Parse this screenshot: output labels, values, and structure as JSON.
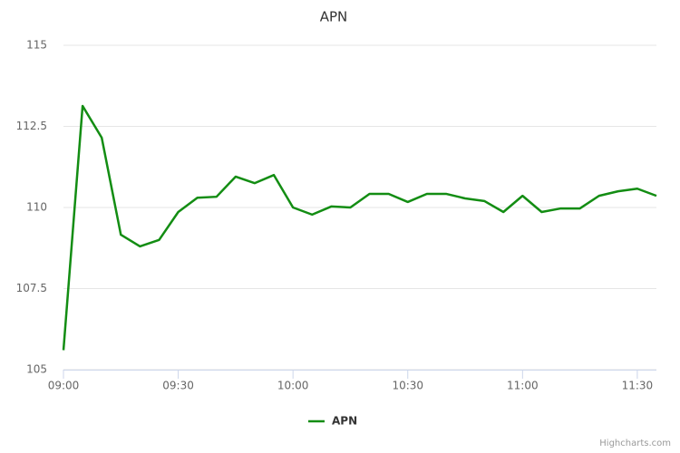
{
  "chart_data": {
    "type": "line",
    "title": "APN",
    "x": [
      "09:00",
      "09:05",
      "09:10",
      "09:15",
      "09:20",
      "09:25",
      "09:30",
      "09:35",
      "09:40",
      "09:45",
      "09:50",
      "09:55",
      "10:00",
      "10:05",
      "10:10",
      "10:15",
      "10:20",
      "10:25",
      "10:30",
      "10:35",
      "10:40",
      "10:45",
      "10:50",
      "10:55",
      "11:00",
      "11:05",
      "11:10",
      "11:15",
      "11:20",
      "11:25",
      "11:30",
      "11:35"
    ],
    "series": [
      {
        "name": "APN",
        "color": "#138d13",
        "values": [
          105.6,
          113.13,
          112.15,
          109.16,
          108.8,
          109.0,
          109.86,
          110.3,
          110.33,
          110.95,
          110.75,
          111.0,
          110.0,
          109.78,
          110.03,
          110.0,
          110.42,
          110.42,
          110.17,
          110.42,
          110.42,
          110.28,
          110.2,
          109.86,
          110.36,
          109.86,
          109.97,
          109.97,
          110.36,
          110.5,
          110.58,
          110.36
        ]
      }
    ],
    "xlim": [
      "09:00",
      "11:35"
    ],
    "xticks": [
      "09:00",
      "09:30",
      "10:00",
      "10:30",
      "11:00",
      "11:30"
    ],
    "ylim": [
      105,
      115
    ],
    "yticks": [
      105,
      107.5,
      110,
      112.5,
      115
    ],
    "grid": true,
    "credits": "Highcharts.com"
  }
}
